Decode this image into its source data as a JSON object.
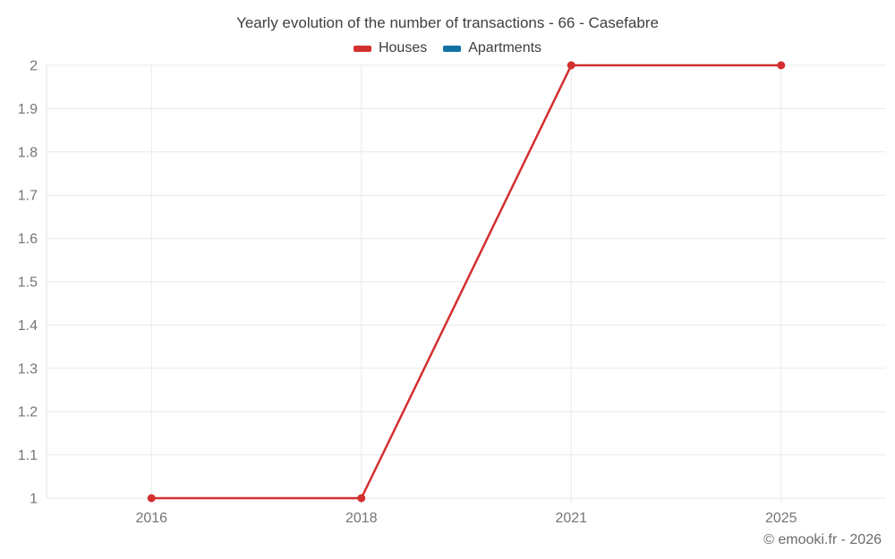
{
  "page": {
    "watermark": "© emooki.fr - 2026"
  },
  "chart_data": {
    "type": "line",
    "title": "Yearly evolution of the number of transactions - 66 - Casefabre",
    "categories": [
      "2016",
      "2018",
      "2021",
      "2025"
    ],
    "series": [
      {
        "name": "Houses",
        "color": "#d32f2f",
        "values": [
          1,
          1,
          2,
          2
        ]
      },
      {
        "name": "Apartments",
        "color": "#1272a5",
        "values": []
      }
    ],
    "xlabel": "",
    "ylabel": "",
    "ylim": [
      1,
      2
    ],
    "y_ticks": [
      1,
      1.1,
      1.2,
      1.3,
      1.4,
      1.5,
      1.6,
      1.7,
      1.8,
      1.9,
      2
    ],
    "y_tick_labels": [
      "1",
      "1.1",
      "1.2",
      "1.3",
      "1.4",
      "1.5",
      "1.6",
      "1.7",
      "1.8",
      "1.9",
      "2"
    ],
    "grid": true,
    "legend_position": "top",
    "colors": {
      "grid_line": "#e9e9e9",
      "axis_line": "#e0e0e0",
      "tick_label": "#757575",
      "title_text": "#3f3f3f",
      "watermark_text": "#6b6b6b"
    }
  }
}
